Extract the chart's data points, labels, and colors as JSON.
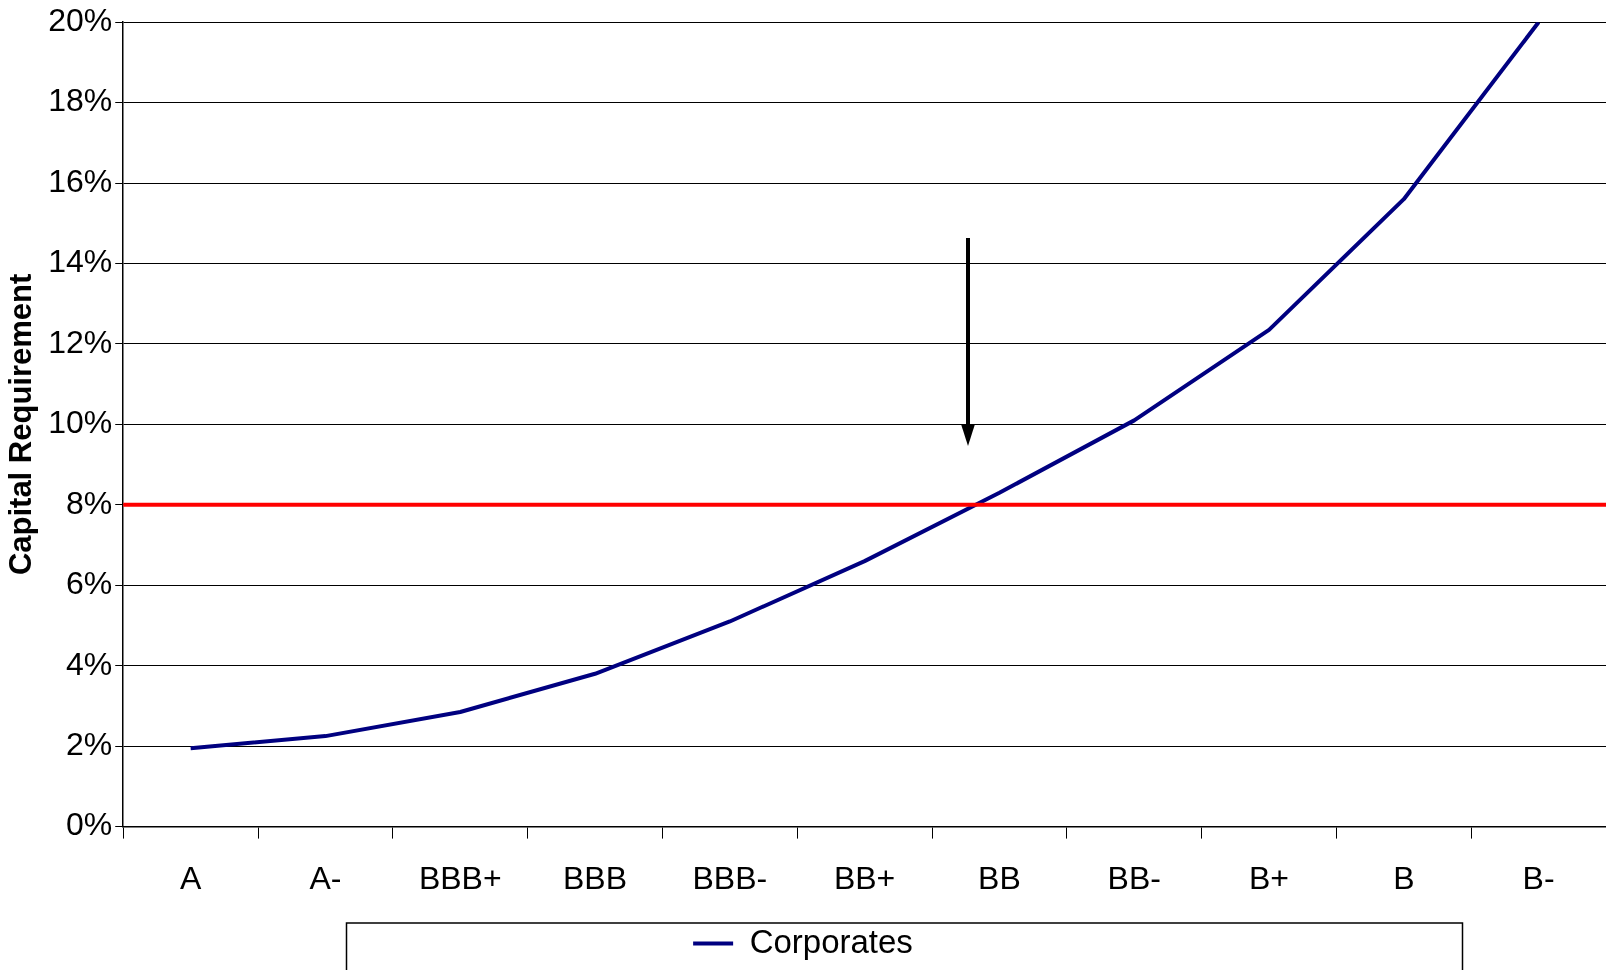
{
  "chart_data": {
    "type": "line",
    "ylabel": "Capital Requirement",
    "categories": [
      "A",
      "A-",
      "BBB+",
      "BBB",
      "BBB-",
      "BB+",
      "BB",
      "BB-",
      "B+",
      "B",
      "B-"
    ],
    "series": [
      {
        "name": "Corporates",
        "color": "#000080",
        "values": [
          1.95,
          2.25,
          2.85,
          3.8,
          5.1,
          6.6,
          8.3,
          10.1,
          12.35,
          15.6,
          20
        ]
      }
    ],
    "ylim": [
      0,
      20
    ],
    "yticks": [
      {
        "value": 0,
        "label": "0%"
      },
      {
        "value": 2,
        "label": "2%"
      },
      {
        "value": 4,
        "label": "4%"
      },
      {
        "value": 6,
        "label": "6%"
      },
      {
        "value": 8,
        "label": "8%"
      },
      {
        "value": 10,
        "label": "10%"
      },
      {
        "value": 12,
        "label": "12%"
      },
      {
        "value": 14,
        "label": "14%"
      },
      {
        "value": 16,
        "label": "16%"
      },
      {
        "value": 18,
        "label": "18%"
      },
      {
        "value": 20,
        "label": "20%"
      }
    ],
    "ref_lines": [
      {
        "axis": "y",
        "value": 8,
        "color": "#ff0000"
      }
    ],
    "grid": "y",
    "legend": "bottom",
    "marker": "none",
    "line_style": "solid"
  }
}
